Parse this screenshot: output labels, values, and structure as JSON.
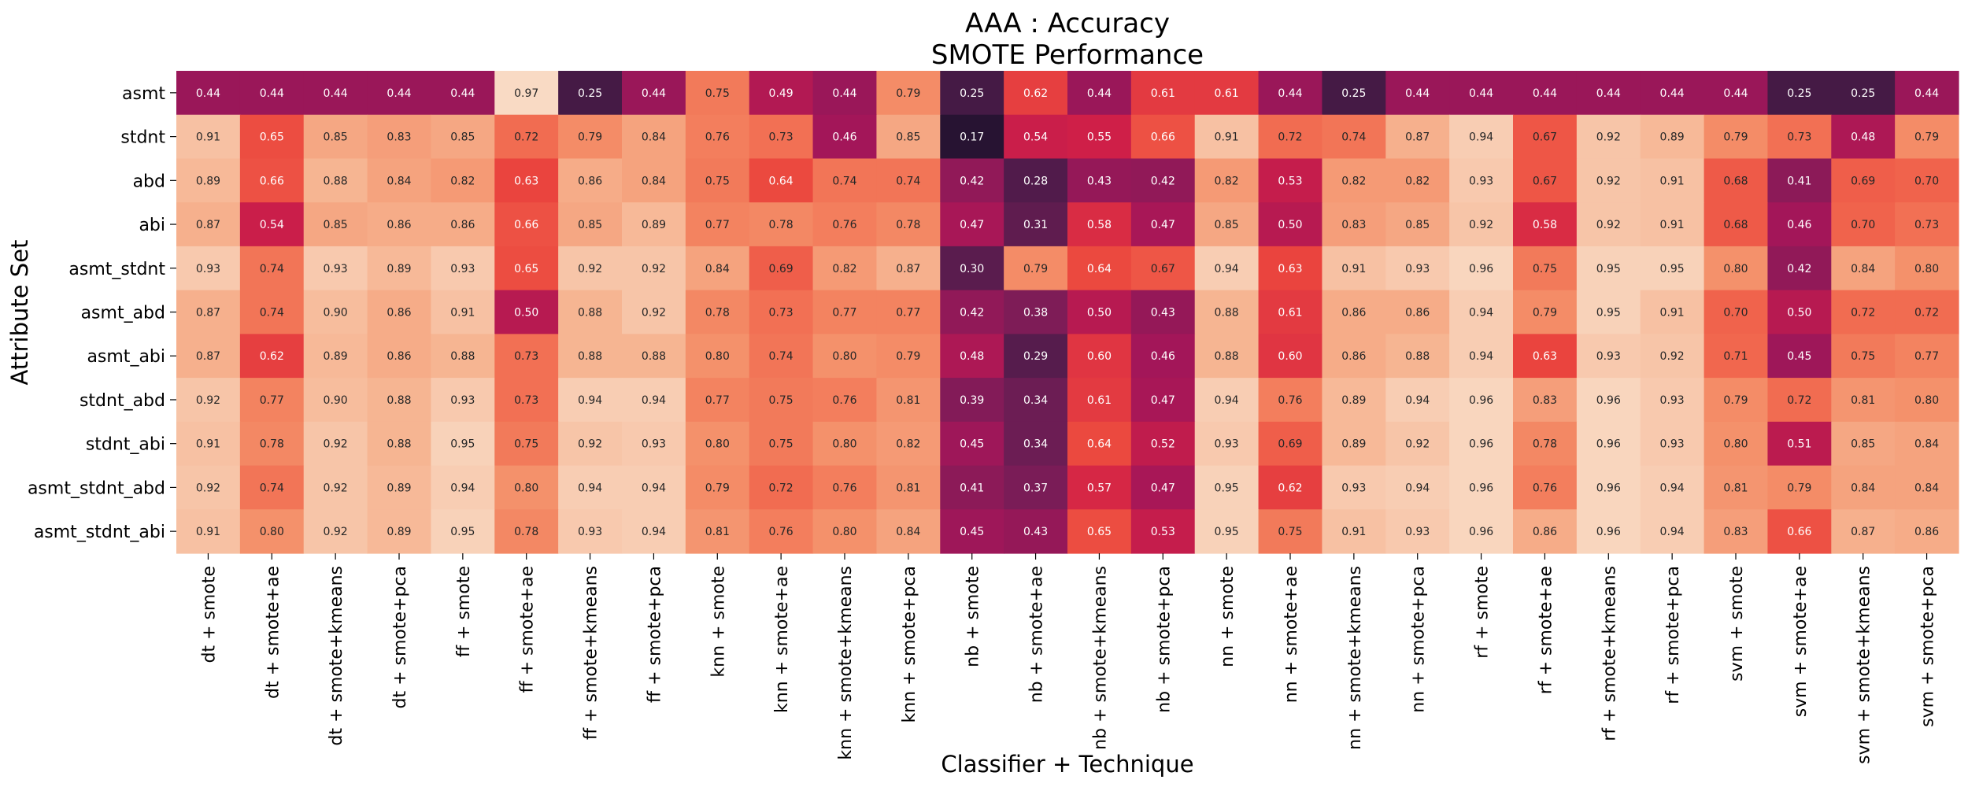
{
  "chart_data": {
    "type": "heatmap",
    "title_line1": "AAA : Accuracy",
    "title_line2": "SMOTE Performance",
    "xlabel": "Classifier + Technique",
    "ylabel": "Attribute Set",
    "colormap": "rocket",
    "value_range": [
      0.17,
      0.97
    ],
    "grid": false,
    "columns": [
      "dt + smote",
      "dt + smote+ae",
      "dt + smote+kmeans",
      "dt + smote+pca",
      "ff + smote",
      "ff + smote+ae",
      "ff + smote+kmeans",
      "ff + smote+pca",
      "knn + smote",
      "knn + smote+ae",
      "knn + smote+kmeans",
      "knn + smote+pca",
      "nb + smote",
      "nb + smote+ae",
      "nb + smote+kmeans",
      "nb + smote+pca",
      "nn + smote",
      "nn + smote+ae",
      "nn + smote+kmeans",
      "nn + smote+pca",
      "rf + smote",
      "rf + smote+ae",
      "rf + smote+kmeans",
      "rf + smote+pca",
      "svm + smote",
      "svm + smote+ae",
      "svm + smote+kmeans",
      "svm + smote+pca"
    ],
    "rows": [
      "asmt",
      "stdnt",
      "abd",
      "abi",
      "asmt_stdnt",
      "asmt_abd",
      "asmt_abi",
      "stdnt_abd",
      "stdnt_abi",
      "asmt_stdnt_abd",
      "asmt_stdnt_abi"
    ],
    "values": [
      [
        0.44,
        0.44,
        0.44,
        0.44,
        0.44,
        0.97,
        0.25,
        0.44,
        0.75,
        0.49,
        0.44,
        0.79,
        0.25,
        0.62,
        0.44,
        0.61,
        0.61,
        0.44,
        0.25,
        0.44,
        0.44,
        0.44,
        0.44,
        0.44,
        0.44,
        0.25,
        0.25,
        0.44
      ],
      [
        0.91,
        0.65,
        0.85,
        0.83,
        0.85,
        0.72,
        0.79,
        0.84,
        0.76,
        0.73,
        0.46,
        0.85,
        0.17,
        0.54,
        0.55,
        0.66,
        0.91,
        0.72,
        0.74,
        0.87,
        0.94,
        0.67,
        0.92,
        0.89,
        0.79,
        0.73,
        0.48,
        0.79
      ],
      [
        0.89,
        0.66,
        0.88,
        0.84,
        0.82,
        0.63,
        0.86,
        0.84,
        0.75,
        0.64,
        0.74,
        0.74,
        0.42,
        0.28,
        0.43,
        0.42,
        0.82,
        0.53,
        0.82,
        0.82,
        0.93,
        0.67,
        0.92,
        0.91,
        0.68,
        0.41,
        0.69,
        0.7
      ],
      [
        0.87,
        0.54,
        0.85,
        0.86,
        0.86,
        0.66,
        0.85,
        0.89,
        0.77,
        0.78,
        0.76,
        0.78,
        0.47,
        0.31,
        0.58,
        0.47,
        0.85,
        0.5,
        0.83,
        0.85,
        0.92,
        0.58,
        0.92,
        0.91,
        0.68,
        0.46,
        0.7,
        0.73
      ],
      [
        0.93,
        0.74,
        0.93,
        0.89,
        0.93,
        0.65,
        0.92,
        0.92,
        0.84,
        0.69,
        0.82,
        0.87,
        0.3,
        0.79,
        0.64,
        0.67,
        0.94,
        0.63,
        0.91,
        0.93,
        0.96,
        0.75,
        0.95,
        0.95,
        0.8,
        0.42,
        0.84,
        0.8
      ],
      [
        0.87,
        0.74,
        0.9,
        0.86,
        0.91,
        0.5,
        0.88,
        0.92,
        0.78,
        0.73,
        0.77,
        0.77,
        0.42,
        0.38,
        0.5,
        0.43,
        0.88,
        0.61,
        0.86,
        0.86,
        0.94,
        0.79,
        0.95,
        0.91,
        0.7,
        0.5,
        0.72,
        0.72
      ],
      [
        0.87,
        0.62,
        0.89,
        0.86,
        0.88,
        0.73,
        0.88,
        0.88,
        0.8,
        0.74,
        0.8,
        0.79,
        0.48,
        0.29,
        0.6,
        0.46,
        0.88,
        0.6,
        0.86,
        0.88,
        0.94,
        0.63,
        0.93,
        0.92,
        0.71,
        0.45,
        0.75,
        0.77
      ],
      [
        0.92,
        0.77,
        0.9,
        0.88,
        0.93,
        0.73,
        0.94,
        0.94,
        0.77,
        0.75,
        0.76,
        0.81,
        0.39,
        0.34,
        0.61,
        0.47,
        0.94,
        0.76,
        0.89,
        0.94,
        0.96,
        0.83,
        0.96,
        0.93,
        0.79,
        0.72,
        0.81,
        0.8
      ],
      [
        0.91,
        0.78,
        0.92,
        0.88,
        0.95,
        0.75,
        0.92,
        0.93,
        0.8,
        0.75,
        0.8,
        0.82,
        0.45,
        0.34,
        0.64,
        0.52,
        0.93,
        0.69,
        0.89,
        0.92,
        0.96,
        0.78,
        0.96,
        0.93,
        0.8,
        0.51,
        0.85,
        0.84
      ],
      [
        0.92,
        0.74,
        0.92,
        0.89,
        0.94,
        0.8,
        0.94,
        0.94,
        0.79,
        0.72,
        0.76,
        0.81,
        0.41,
        0.37,
        0.57,
        0.47,
        0.95,
        0.62,
        0.93,
        0.94,
        0.96,
        0.76,
        0.96,
        0.94,
        0.81,
        0.79,
        0.84,
        0.84
      ],
      [
        0.91,
        0.8,
        0.92,
        0.89,
        0.95,
        0.78,
        0.93,
        0.94,
        0.81,
        0.76,
        0.8,
        0.84,
        0.45,
        0.43,
        0.65,
        0.53,
        0.95,
        0.75,
        0.91,
        0.93,
        0.96,
        0.86,
        0.96,
        0.94,
        0.83,
        0.66,
        0.87,
        0.86
      ]
    ]
  }
}
